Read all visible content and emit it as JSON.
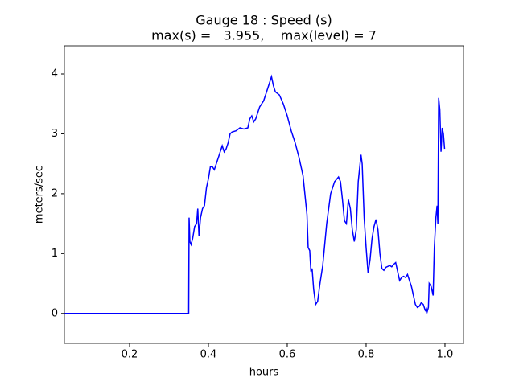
{
  "chart_data": {
    "type": "line",
    "title": "Gauge 18 : Speed (s)",
    "subtitle": "max(s) =   3.955,    max(level) = 7",
    "xlabel": "hours",
    "ylabel": "meters/sec",
    "xlim": [
      0.0347,
      1.047
    ],
    "ylim": [
      -0.5,
      4.47
    ],
    "xticks": [
      0.2,
      0.4,
      0.6,
      0.8,
      {
        "value": 1,
        "label": "1.0"
      }
    ],
    "yticks": [
      0,
      1,
      2,
      3,
      4
    ],
    "series": [
      {
        "color": "#0000ff",
        "x": [
          0.035,
          0.35,
          0.351,
          0.353,
          0.356,
          0.36,
          0.365,
          0.37,
          0.373,
          0.376,
          0.38,
          0.385,
          0.39,
          0.395,
          0.4,
          0.405,
          0.41,
          0.415,
          0.42,
          0.425,
          0.43,
          0.435,
          0.44,
          0.445,
          0.45,
          0.455,
          0.46,
          0.47,
          0.48,
          0.49,
          0.5,
          0.505,
          0.51,
          0.515,
          0.52,
          0.53,
          0.54,
          0.55,
          0.56,
          0.565,
          0.57,
          0.58,
          0.59,
          0.6,
          0.61,
          0.62,
          0.63,
          0.64,
          0.65,
          0.653,
          0.657,
          0.66,
          0.663,
          0.667,
          0.672,
          0.677,
          0.683,
          0.69,
          0.7,
          0.71,
          0.72,
          0.73,
          0.735,
          0.74,
          0.745,
          0.75,
          0.755,
          0.76,
          0.765,
          0.77,
          0.775,
          0.78,
          0.787,
          0.79,
          0.795,
          0.8,
          0.805,
          0.81,
          0.815,
          0.82,
          0.825,
          0.83,
          0.835,
          0.84,
          0.845,
          0.85,
          0.86,
          0.865,
          0.87,
          0.875,
          0.88,
          0.885,
          0.89,
          0.895,
          0.9,
          0.905,
          0.91,
          0.915,
          0.92,
          0.925,
          0.93,
          0.935,
          0.94,
          0.945,
          0.95,
          0.953,
          0.955,
          0.958,
          0.96,
          0.965,
          0.97,
          0.973,
          0.977,
          0.98,
          0.982,
          0.984,
          0.987,
          0.99,
          0.993,
          0.996,
          0.999
        ],
        "values": [
          0,
          0,
          1.6,
          1.2,
          1.15,
          1.25,
          1.45,
          1.5,
          1.75,
          1.3,
          1.6,
          1.75,
          1.8,
          2.1,
          2.25,
          2.45,
          2.45,
          2.4,
          2.5,
          2.6,
          2.7,
          2.8,
          2.7,
          2.75,
          2.85,
          3.0,
          3.03,
          3.05,
          3.1,
          3.08,
          3.1,
          3.25,
          3.3,
          3.2,
          3.25,
          3.45,
          3.55,
          3.75,
          3.955,
          3.8,
          3.7,
          3.65,
          3.5,
          3.3,
          3.05,
          2.85,
          2.6,
          2.3,
          1.65,
          1.1,
          1.05,
          0.7,
          0.75,
          0.4,
          0.15,
          0.2,
          0.5,
          0.8,
          1.5,
          2.0,
          2.2,
          2.28,
          2.2,
          1.9,
          1.55,
          1.5,
          1.9,
          1.75,
          1.4,
          1.2,
          1.4,
          2.2,
          2.65,
          2.5,
          1.6,
          1.1,
          0.67,
          0.9,
          1.25,
          1.45,
          1.57,
          1.4,
          1.0,
          0.75,
          0.72,
          0.77,
          0.8,
          0.78,
          0.82,
          0.85,
          0.7,
          0.55,
          0.6,
          0.62,
          0.6,
          0.65,
          0.55,
          0.45,
          0.3,
          0.15,
          0.1,
          0.12,
          0.18,
          0.15,
          0.05,
          0.08,
          0.03,
          0.1,
          0.5,
          0.45,
          0.3,
          1.1,
          1.6,
          1.8,
          1.5,
          3.6,
          3.4,
          2.7,
          3.1,
          3.0,
          2.75
        ]
      }
    ]
  }
}
